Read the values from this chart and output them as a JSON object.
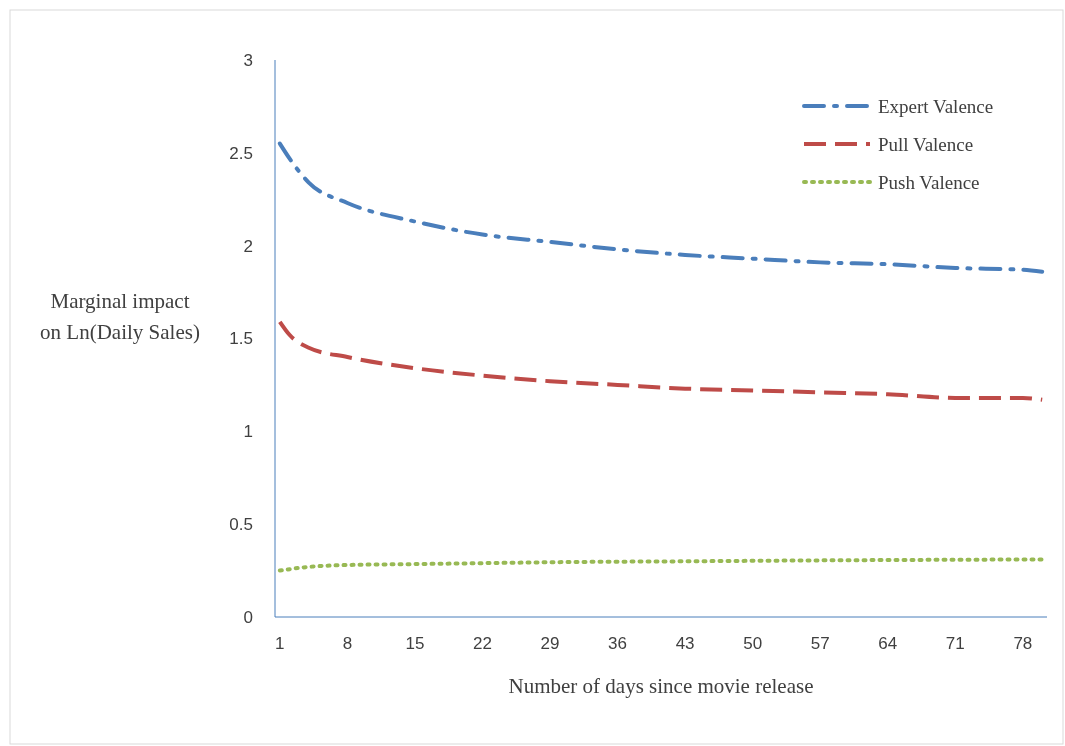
{
  "chart_data": {
    "type": "line",
    "xlabel": "Number of days since movie release",
    "ylabel": "Marginal impact\non Ln(Daily Sales)",
    "xlim": [
      0.5,
      80.5
    ],
    "xticks": [
      1,
      8,
      15,
      22,
      29,
      36,
      43,
      50,
      57,
      64,
      71,
      78
    ],
    "ylim": [
      0,
      3
    ],
    "yticks": [
      0,
      0.5,
      1,
      1.5,
      2,
      2.5,
      3
    ],
    "legend": "top right",
    "grid": false,
    "series": [
      {
        "name": "Expert Valence",
        "color": "#4a7ebb",
        "line_style": "dashdot",
        "x": [
          1,
          2,
          4,
          8,
          15,
          22,
          29,
          36,
          43,
          50,
          57,
          64,
          71,
          78,
          80
        ],
        "values": [
          2.55,
          2.47,
          2.34,
          2.23,
          2.13,
          2.06,
          2.02,
          1.98,
          1.95,
          1.93,
          1.91,
          1.9,
          1.88,
          1.87,
          1.86
        ]
      },
      {
        "name": "Pull Valence",
        "color": "#be4b48",
        "line_style": "dashed",
        "x": [
          1,
          2,
          4,
          8,
          15,
          22,
          29,
          36,
          43,
          50,
          57,
          64,
          71,
          78,
          80
        ],
        "values": [
          1.59,
          1.52,
          1.45,
          1.4,
          1.34,
          1.3,
          1.27,
          1.25,
          1.23,
          1.22,
          1.21,
          1.2,
          1.18,
          1.18,
          1.17
        ]
      },
      {
        "name": "Push Valence",
        "color": "#98b954",
        "line_style": "dotted",
        "x": [
          1,
          4,
          8,
          15,
          22,
          29,
          43,
          57,
          80
        ],
        "values": [
          0.25,
          0.27,
          0.28,
          0.285,
          0.29,
          0.295,
          0.3,
          0.305,
          0.31
        ]
      }
    ]
  }
}
